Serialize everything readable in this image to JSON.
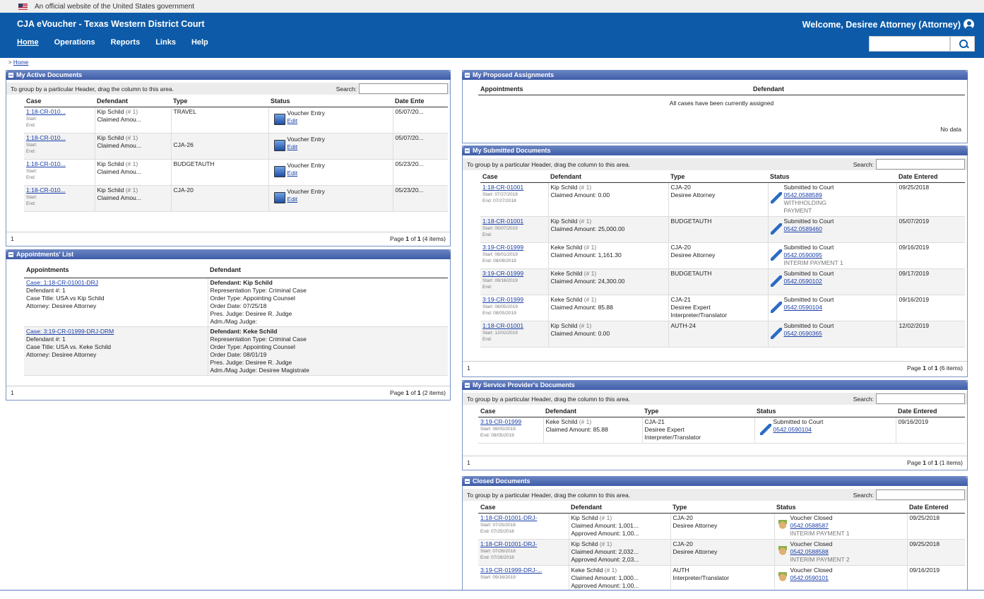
{
  "gov_banner": "An official website of the United States government",
  "app_title": "CJA eVoucher - Texas Western District Court",
  "welcome": "Welcome, Desiree Attorney (Attorney)",
  "nav": [
    "Home",
    "Operations",
    "Reports",
    "Links",
    "Help"
  ],
  "crumb_prefix": ">",
  "crumb": "Home",
  "group_hint": "To group by a particular Header, drag the column to this area.",
  "search_label": "Search:",
  "active": {
    "title": "My Active Documents",
    "headers": [
      "Case",
      "Defendant",
      "Type",
      "Status",
      "Date Ente"
    ],
    "rows": [
      {
        "case": "1:18-CR-010...",
        "start": "Start:",
        "end": "End:",
        "def": "Kip Schild",
        "num": "(# 1)",
        "claim": "Claimed Amou...",
        "type": "TRAVEL",
        "status": "Voucher Entry",
        "action": "Edit",
        "date": "05/07/20..."
      },
      {
        "case": "1:18-CR-010...",
        "start": "Start:",
        "end": "End:",
        "def": "Kip Schild",
        "num": "(# 1)",
        "claim": "Claimed Amou...",
        "type": "CJA-26",
        "status": "Voucher Entry",
        "action": "Edit",
        "date": "05/07/20..."
      },
      {
        "case": "1:18-CR-010...",
        "start": "Start:",
        "end": "End:",
        "def": "Kip Schild",
        "num": "(# 1)",
        "claim": "Claimed Amou...",
        "type": "BUDGETAUTH",
        "status": "Voucher Entry",
        "action": "Edit",
        "date": "05/23/20..."
      },
      {
        "case": "1:18-CR-010...",
        "start": "Start:",
        "end": "End:",
        "def": "Kip Schild",
        "num": "(# 1)",
        "claim": "Claimed Amou...",
        "type": "CJA-20",
        "status": "Voucher Entry",
        "action": "Edit",
        "date": "05/23/20..."
      }
    ],
    "page_num": "1",
    "pager_prefix": "Page",
    "pager_cur": "1",
    "pager_of": "of",
    "pager_total": "1",
    "pager_items": "(4 items)"
  },
  "appointments": {
    "title": "Appointments' List",
    "headers": [
      "Appointments",
      "Defendant"
    ],
    "rows": [
      {
        "case": "Case: 1:18-CR-01001-DRJ",
        "l1": "Defendant #: 1",
        "l2": "Case Title: USA vs Kip Schild",
        "l3": "Attorney: Desiree Attorney",
        "def": "Defendant: Kip Schild",
        "d1": "Representation Type: Criminal Case",
        "d2": "Order Type: Appointing Counsel",
        "d3": "Order Date: 07/25/18",
        "d4": "Pres. Judge: Desiree R. Judge",
        "d5": "Adm./Mag Judge:"
      },
      {
        "case": "Case: 3:19-CR-01999-DRJ-DRM",
        "l1": "Defendant #: 1",
        "l2": "Case Title: USA vs. Keke Schild",
        "l3": "Attorney: Desiree Attorney",
        "def": "Defendant: Keke Schild",
        "d1": "Representation Type: Criminal Case",
        "d2": "Order Type: Appointing Counsel",
        "d3": "Order Date: 08/01/19",
        "d4": "Pres. Judge: Desiree R. Judge",
        "d5": "Adm./Mag Judge: Desiree Magistrate"
      }
    ],
    "page_num": "1",
    "pager_prefix": "Page",
    "pager_cur": "1",
    "pager_of": "of",
    "pager_total": "1",
    "pager_items": "(2 items)"
  },
  "proposed": {
    "title": "My Proposed Assignments",
    "headers": [
      "Appointments",
      "Defendant"
    ],
    "empty": "All cases have been currently assigned",
    "nodata": "No data"
  },
  "submitted": {
    "title": "My Submitted Documents",
    "headers": [
      "Case",
      "Defendant",
      "Type",
      "Status",
      "Date Entered"
    ],
    "rows": [
      {
        "case": "1:18-CR-01001",
        "start": "Start: 07/27/2018",
        "end": "End: 07/27/2018",
        "def": "Kip Schild",
        "num": "(# 1)",
        "claim": "Claimed Amount: 0.00",
        "t1": "CJA-20",
        "t2": "Desiree Attorney",
        "t3": "",
        "status": "Submitted to Court",
        "link": "0542.0588589",
        "s2": "WITHHOLDING",
        "s3": "PAYMENT",
        "date": "09/25/2018"
      },
      {
        "case": "1:18-CR-01001",
        "start": "Start: 05/07/2019",
        "end": "End:",
        "def": "Kip Schild",
        "num": "(# 1)",
        "claim": "Claimed Amount: 25,000.00",
        "t1": "BUDGETAUTH",
        "t2": "",
        "t3": "",
        "status": "Submitted to Court",
        "link": "0542.0589460",
        "s2": "",
        "s3": "",
        "date": "05/07/2019"
      },
      {
        "case": "3:19-CR-01999",
        "start": "Start: 08/01/2019",
        "end": "End: 08/09/2019",
        "def": "Keke Schild",
        "num": "(# 1)",
        "claim": "Claimed Amount: 1,161.30",
        "t1": "CJA-20",
        "t2": "Desiree Attorney",
        "t3": "",
        "status": "Submitted to Court",
        "link": "0542.0590095",
        "s2": "INTERIM PAYMENT  1",
        "s3": "",
        "date": "09/16/2019"
      },
      {
        "case": "3:19-CR-01999",
        "start": "Start: 09/16/2019",
        "end": "End:",
        "def": "Keke Schild",
        "num": "(# 1)",
        "claim": "Claimed Amount: 24,300.00",
        "t1": "BUDGETAUTH",
        "t2": "",
        "t3": "",
        "status": "Submitted to Court",
        "link": "0542.0590102",
        "s2": "",
        "s3": "",
        "date": "09/17/2019"
      },
      {
        "case": "3:19-CR-01999",
        "start": "Start: 08/05/2019",
        "end": "End: 08/05/2019",
        "def": "Keke Schild",
        "num": "(# 1)",
        "claim": "Claimed Amount: 85.88",
        "t1": "CJA-21",
        "t2": "Desiree Expert",
        "t3": "Interpreter/Translator",
        "status": "Submitted to Court",
        "link": "0542.0590104",
        "s2": "",
        "s3": "",
        "date": "09/16/2019"
      },
      {
        "case": "1:18-CR-01001",
        "start": "Start: 12/02/2019",
        "end": "End:",
        "def": "Kip Schild",
        "num": "(# 1)",
        "claim": "Claimed Amount: 0.00",
        "t1": "AUTH-24",
        "t2": "",
        "t3": "",
        "status": "Submitted to Court",
        "link": "0542.0590365",
        "s2": "",
        "s3": "",
        "date": "12/02/2019"
      }
    ],
    "page_num": "1",
    "pager_prefix": "Page",
    "pager_cur": "1",
    "pager_of": "of",
    "pager_total": "1",
    "pager_items": "(6 items)"
  },
  "provider": {
    "title": "My Service Provider's Documents",
    "headers": [
      "Case",
      "Defendant",
      "Type",
      "Status",
      "Date Entered"
    ],
    "rows": [
      {
        "case": "3:19-CR-01999",
        "start": "Start: 08/05/2019",
        "end": "End: 08/05/2019",
        "def": "Keke Schild",
        "num": "(# 1)",
        "claim": "Claimed Amount: 85.88",
        "t1": "CJA-21",
        "t2": "Desiree Expert",
        "t3": "Interpreter/Translator",
        "status": "Submitted to Court",
        "link": "0542.0590104",
        "date": "09/16/2019"
      }
    ],
    "page_num": "1",
    "pager_prefix": "Page",
    "pager_cur": "1",
    "pager_of": "of",
    "pager_total": "1",
    "pager_items": "(1 items)"
  },
  "closed": {
    "title": "Closed Documents",
    "headers": [
      "Case",
      "Defendant",
      "Type",
      "Status",
      "Date Entered"
    ],
    "rows": [
      {
        "case": "1:18-CR-01001-DRJ-",
        "start": "Start: 07/25/2018",
        "end": "End: 07/25/2018",
        "def": "Kip Schild",
        "num": "(# 1)",
        "claim": "Claimed Amount: 1,001...",
        "appr": "Approved Amount: 1,00...",
        "t1": "CJA-20",
        "t2": "Desiree Attorney",
        "status": "Voucher Closed",
        "link": "0542.0588587",
        "s2": "INTERIM PAYMENT  1",
        "date": "09/25/2018"
      },
      {
        "case": "1:18-CR-01001-DRJ-",
        "start": "Start: 07/26/2018",
        "end": "End: 07/26/2018",
        "def": "Kip Schild",
        "num": "(# 1)",
        "claim": "Claimed Amount: 2,032...",
        "appr": "Approved Amount: 2,03...",
        "t1": "CJA-20",
        "t2": "Desiree Attorney",
        "status": "Voucher Closed",
        "link": "0542.0588588",
        "s2": "INTERIM PAYMENT  2",
        "date": "09/25/2018"
      },
      {
        "case": "3:19-CR-01999-DRJ-...",
        "start": "Start: 09/16/2019",
        "end": "",
        "def": "Keke Schild",
        "num": "(# 1)",
        "claim": "Claimed Amount: 1,000...",
        "appr": "Approved Amount: 1,00...",
        "t1": "AUTH",
        "t2": "Interpreter/Translator",
        "status": "Voucher Closed",
        "link": "0542.0590101",
        "s2": "",
        "date": "09/16/2019"
      }
    ]
  }
}
